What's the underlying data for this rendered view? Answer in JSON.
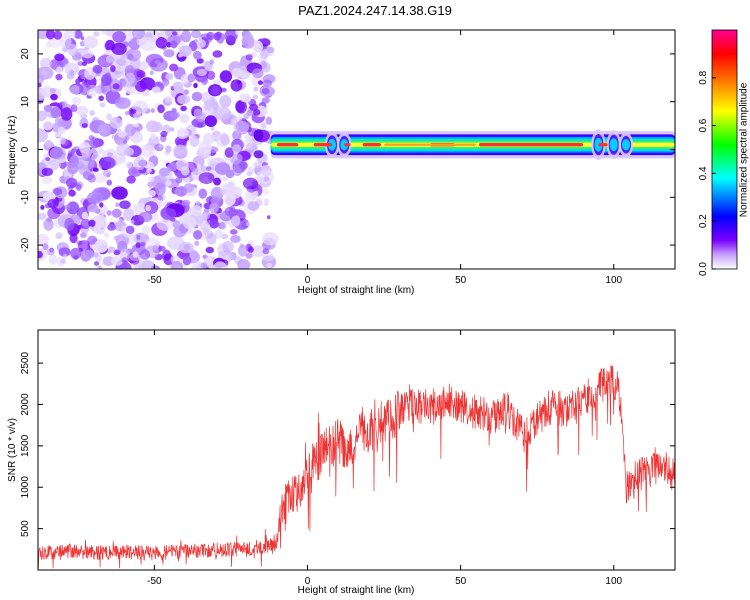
{
  "figure": {
    "title": "PAZ1.2024.247.14.38.G19"
  },
  "chart_data": [
    {
      "type": "heatmap",
      "xlabel": "Height of straight line (km)",
      "ylabel": "Frequency (Hz)",
      "xlim": [
        -88,
        120
      ],
      "ylim": [
        -25,
        25
      ],
      "xticks": [
        -50,
        0,
        50,
        100
      ],
      "yticks": [
        -20,
        -10,
        0,
        10,
        20
      ],
      "colorbar": {
        "label": "Normalized spectral amplitude",
        "range": [
          0,
          1
        ],
        "ticks": [
          0.0,
          0.2,
          0.4,
          0.6,
          0.8
        ],
        "tick_labels": [
          "0.0",
          "0.2",
          "0.4",
          "0.6",
          "0.8"
        ],
        "colormap": [
          "#ffffff",
          "#7b00ff",
          "#0000ff",
          "#00ffff",
          "#00ff00",
          "#ffff00",
          "#ff7f00",
          "#ff0000",
          "#ff00a0"
        ]
      },
      "description_regions": {
        "noise_region_x": [
          -88,
          -12
        ],
        "noise_color": "#a060ff",
        "signal_band_x": [
          -12,
          120
        ],
        "signal_band_center_hz": 1,
        "signal_band_halfwidth_hz": 1.5
      }
    },
    {
      "type": "line",
      "xlabel": "Height of straight line (km)",
      "ylabel": "SNR (10 * v/v)",
      "xlim": [
        -88,
        120
      ],
      "ylim": [
        0,
        2900
      ],
      "xticks": [
        -50,
        0,
        50,
        100
      ],
      "yticks": [
        500,
        1000,
        1500,
        2000,
        2500
      ],
      "series": [
        {
          "color": "#ee3333",
          "x": [
            -88,
            -80,
            -70,
            -60,
            -50,
            -40,
            -30,
            -20,
            -15,
            -10,
            -8,
            -5,
            -2,
            0,
            3,
            5,
            8,
            10,
            13,
            15,
            18,
            20,
            25,
            30,
            35,
            40,
            45,
            50,
            55,
            60,
            65,
            70,
            75,
            80,
            85,
            90,
            95,
            100,
            102,
            104,
            108,
            112,
            116,
            120
          ],
          "values": [
            200,
            230,
            210,
            220,
            200,
            230,
            240,
            260,
            280,
            300,
            700,
            900,
            1000,
            1100,
            1300,
            1500,
            1450,
            1600,
            1350,
            1500,
            1700,
            1650,
            1800,
            1900,
            2000,
            1950,
            2050,
            2000,
            1900,
            1850,
            1950,
            1650,
            1800,
            2000,
            1900,
            2050,
            2200,
            2300,
            2100,
            1000,
            1150,
            1200,
            1250,
            1150
          ]
        }
      ]
    }
  ]
}
